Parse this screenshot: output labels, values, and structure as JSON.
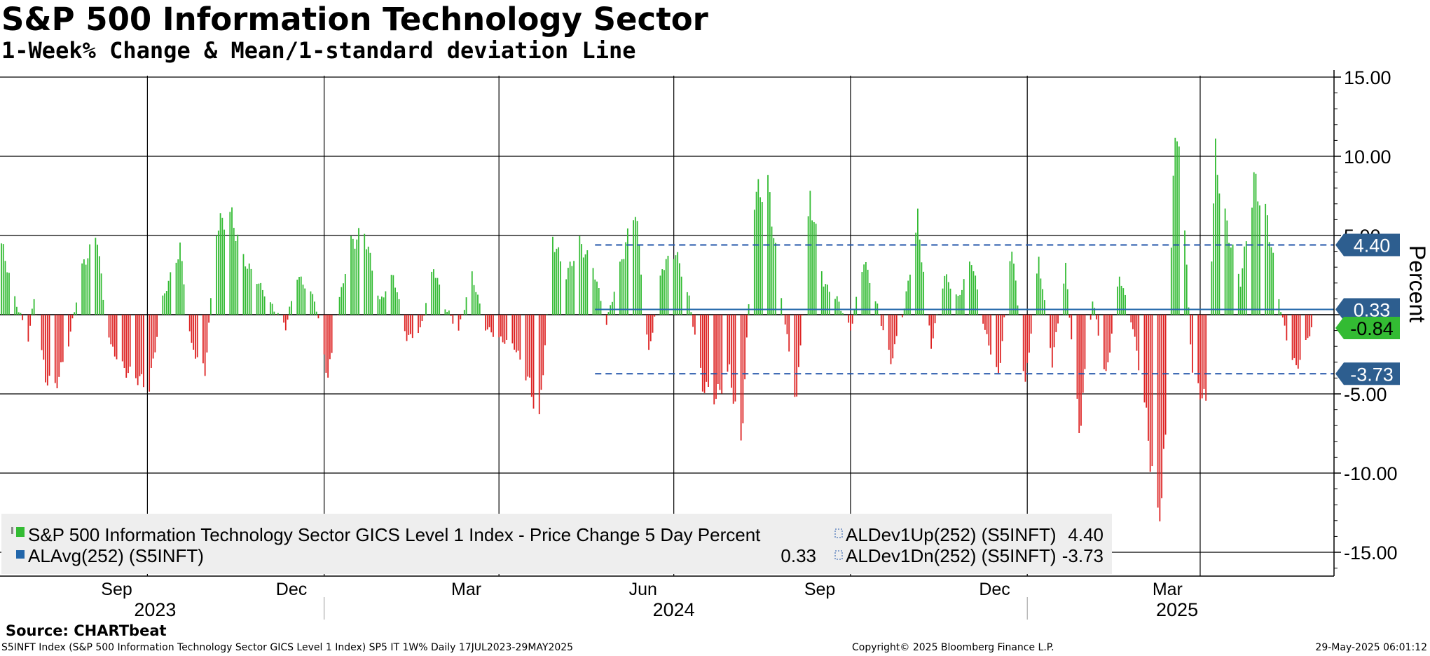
{
  "header": {
    "title": "S&P 500 Information Technology Sector",
    "subtitle": "1-Week% Change & Mean/1-standard deviation Line"
  },
  "footer": {
    "source": "Source: CHARTbeat",
    "info": "S5INFT Index (S&P 500 Information Technology Sector GICS Level 1 Index) SP5 IT 1W%  Daily 17JUL2023-29MAY2025",
    "copyright": "Copyright© 2025 Bloomberg Finance L.P.",
    "timestamp": "29-May-2025 06:01:12"
  },
  "colors": {
    "positive": "#33bb33",
    "negative": "#dd2222",
    "mean_line": "#2266aa",
    "dev_line": "#2255aa",
    "tag_blue": "#2d5e8f",
    "tag_green": "#33bb33",
    "legend_bg": "#eeeeee"
  },
  "chart_data": {
    "type": "bar",
    "title": "S&P 500 Information Technology Sector",
    "subtitle": "1-Week% Change & Mean/1-standard deviation Line",
    "ylabel": "Percent",
    "ylim": [
      -16.5,
      15.4
    ],
    "yticks": [
      15,
      10,
      5,
      0,
      -5,
      -10,
      -15
    ],
    "ytick_labels": [
      "15.00",
      "10.00",
      "5.00",
      "0",
      "-5.00",
      "-10.00",
      "-15.00"
    ],
    "x_range": [
      "2023-07-17",
      "2025-05-29"
    ],
    "month_labels": [
      {
        "label": "Sep",
        "date": "2023-09-15"
      },
      {
        "label": "Dec",
        "date": "2023-12-15"
      },
      {
        "label": "Mar",
        "date": "2024-03-15"
      },
      {
        "label": "Jun",
        "date": "2024-06-15"
      },
      {
        "label": "Sep",
        "date": "2024-09-15"
      },
      {
        "label": "Dec",
        "date": "2024-12-15"
      },
      {
        "label": "Mar",
        "date": "2025-03-15"
      }
    ],
    "year_labels": [
      {
        "label": "2023",
        "date": "2023-10-05"
      },
      {
        "label": "2024",
        "date": "2024-07-01"
      },
      {
        "label": "2025",
        "date": "2025-03-20"
      }
    ],
    "quarter_gridlines": [
      "2023-10-01",
      "2024-01-01",
      "2024-04-01",
      "2024-07-01",
      "2024-10-01",
      "2025-01-01",
      "2025-04-01"
    ],
    "year_separators": [
      "2024-01-01",
      "2025-01-01"
    ],
    "series": [
      {
        "name": "S&P 500 Information Technology Sector GICS Level 1 Index - Price Change 5 Day Percent",
        "kind": "bar",
        "last_value": -0.84,
        "anchors": [
          [
            "2023-07-17",
            4.5
          ],
          [
            "2023-07-24",
            1.0
          ],
          [
            "2023-07-31",
            -1.5
          ],
          [
            "2023-08-03",
            1.0
          ],
          [
            "2023-08-09",
            -4.0
          ],
          [
            "2023-08-14",
            -4.6
          ],
          [
            "2023-08-21",
            -1.8
          ],
          [
            "2023-08-28",
            3.0
          ],
          [
            "2023-09-05",
            5.0
          ],
          [
            "2023-09-08",
            1.0
          ],
          [
            "2023-09-12",
            -2.0
          ],
          [
            "2023-09-19",
            -3.5
          ],
          [
            "2023-09-26",
            -4.0
          ],
          [
            "2023-10-02",
            -4.5
          ],
          [
            "2023-10-09",
            1.0
          ],
          [
            "2023-10-18",
            4.2
          ],
          [
            "2023-10-24",
            -2.0
          ],
          [
            "2023-10-31",
            -3.7
          ],
          [
            "2023-11-06",
            5.5
          ],
          [
            "2023-11-13",
            6.5
          ],
          [
            "2023-11-20",
            3.5
          ],
          [
            "2023-11-28",
            2.0
          ],
          [
            "2023-12-05",
            0.5
          ],
          [
            "2023-12-12",
            -0.8
          ],
          [
            "2023-12-18",
            2.5
          ],
          [
            "2023-12-27",
            1.0
          ],
          [
            "2024-01-03",
            -4.0
          ],
          [
            "2024-01-09",
            1.0
          ],
          [
            "2024-01-15",
            4.5
          ],
          [
            "2024-01-22",
            5.2
          ],
          [
            "2024-01-30",
            0.8
          ],
          [
            "2024-02-06",
            2.5
          ],
          [
            "2024-02-13",
            -1.5
          ],
          [
            "2024-02-20",
            -1.0
          ],
          [
            "2024-02-27",
            3.0
          ],
          [
            "2024-03-04",
            0.5
          ],
          [
            "2024-03-11",
            -1.0
          ],
          [
            "2024-03-18",
            2.5
          ],
          [
            "2024-03-25",
            -0.8
          ],
          [
            "2024-04-01",
            -1.5
          ],
          [
            "2024-04-09",
            -2.0
          ],
          [
            "2024-04-16",
            -4.0
          ],
          [
            "2024-04-22",
            -6.8
          ],
          [
            "2024-04-29",
            4.8
          ],
          [
            "2024-05-06",
            2.5
          ],
          [
            "2024-05-13",
            4.5
          ],
          [
            "2024-05-20",
            3.0
          ],
          [
            "2024-05-27",
            -0.5
          ],
          [
            "2024-06-04",
            3.5
          ],
          [
            "2024-06-11",
            6.8
          ],
          [
            "2024-06-18",
            -2.5
          ],
          [
            "2024-06-25",
            3.0
          ],
          [
            "2024-07-02",
            4.0
          ],
          [
            "2024-07-09",
            1.0
          ],
          [
            "2024-07-16",
            -4.5
          ],
          [
            "2024-07-23",
            -5.2
          ],
          [
            "2024-07-30",
            -3.5
          ],
          [
            "2024-08-05",
            -8.5
          ],
          [
            "2024-08-12",
            7.5
          ],
          [
            "2024-08-19",
            8.2
          ],
          [
            "2024-08-26",
            1.0
          ],
          [
            "2024-09-03",
            -5.5
          ],
          [
            "2024-09-10",
            7.5
          ],
          [
            "2024-09-17",
            2.0
          ],
          [
            "2024-09-24",
            1.0
          ],
          [
            "2024-10-01",
            -1.0
          ],
          [
            "2024-10-08",
            3.5
          ],
          [
            "2024-10-15",
            0.5
          ],
          [
            "2024-10-22",
            -3.0
          ],
          [
            "2024-10-29",
            0.5
          ],
          [
            "2024-11-05",
            6.0
          ],
          [
            "2024-11-12",
            -2.0
          ],
          [
            "2024-11-19",
            2.5
          ],
          [
            "2024-11-26",
            1.0
          ],
          [
            "2024-12-03",
            3.5
          ],
          [
            "2024-12-10",
            -1.0
          ],
          [
            "2024-12-17",
            -4.0
          ],
          [
            "2024-12-24",
            4.5
          ],
          [
            "2024-12-31",
            -4.5
          ],
          [
            "2025-01-07",
            3.5
          ],
          [
            "2025-01-14",
            -3.0
          ],
          [
            "2025-01-21",
            3.0
          ],
          [
            "2025-01-28",
            -7.5
          ],
          [
            "2025-02-04",
            1.0
          ],
          [
            "2025-02-11",
            -4.0
          ],
          [
            "2025-02-18",
            2.5
          ],
          [
            "2025-02-25",
            -0.8
          ],
          [
            "2025-03-03",
            -5.5
          ],
          [
            "2025-03-10",
            -13.5
          ],
          [
            "2025-03-14",
            -8.0
          ],
          [
            "2025-03-18",
            9.0
          ],
          [
            "2025-03-21",
            12.0
          ],
          [
            "2025-03-28",
            -4.0
          ],
          [
            "2025-04-04",
            -5.5
          ],
          [
            "2025-04-09",
            10.0
          ],
          [
            "2025-04-15",
            5.5
          ],
          [
            "2025-04-22",
            2.0
          ],
          [
            "2025-04-29",
            8.5
          ],
          [
            "2025-05-06",
            6.0
          ],
          [
            "2025-05-12",
            1.0
          ],
          [
            "2025-05-16",
            -1.5
          ],
          [
            "2025-05-21",
            -3.4
          ],
          [
            "2025-05-29",
            -0.84
          ]
        ]
      },
      {
        "name": "ALAvg(252) (S5INFT)",
        "kind": "hline",
        "value": 0.33,
        "start": "2024-05-21",
        "end": "2025-05-29"
      },
      {
        "name": "ALDev1Up(252) (S5INFT)",
        "kind": "hline-dashed",
        "value": 4.4,
        "start": "2024-05-21",
        "end": "2025-05-29"
      },
      {
        "name": "ALDev1Dn(252) (S5INFT)",
        "kind": "hline-dashed",
        "value": -3.73,
        "start": "2024-05-21",
        "end": "2025-05-29"
      }
    ],
    "tags": [
      {
        "label": "4.40",
        "value": 4.4,
        "color": "#2d5e8f",
        "text": "#ffffff"
      },
      {
        "label": "0.33",
        "value": 0.33,
        "color": "#2d5e8f",
        "text": "#ffffff"
      },
      {
        "label": "-0.84",
        "value": -0.84,
        "color": "#33bb33",
        "text": "#000000"
      },
      {
        "label": "-3.73",
        "value": -3.73,
        "color": "#2d5e8f",
        "text": "#ffffff"
      }
    ],
    "legend": {
      "placement": "bottom-left",
      "items": [
        {
          "label": "S&P 500 Information Technology Sector GICS Level 1 Index - Price Change 5 Day Percent",
          "value": "",
          "swatch": "#33bb33"
        },
        {
          "label": "ALDev1Up(252) (S5INFT)",
          "value": "4.40",
          "swatch": "dashed"
        },
        {
          "label": "ALAvg(252) (S5INFT)",
          "value": "0.33",
          "swatch": "#2266aa"
        },
        {
          "label": "ALDev1Dn(252) (S5INFT)",
          "value": "-3.73",
          "swatch": "dashed"
        }
      ]
    }
  }
}
